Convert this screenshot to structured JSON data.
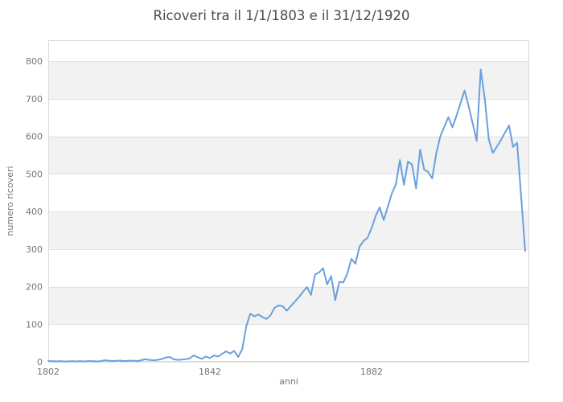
{
  "title": "Ricoveri tra il 1/1/1803 e il 31/12/1920",
  "chart_data": {
    "type": "line",
    "title": "Ricoveri tra il 1/1/1803 e il 31/12/1920",
    "xlabel": "anni",
    "ylabel": "numero ricoveri",
    "x_ticks": [
      1802,
      1842,
      1882
    ],
    "y_ticks": [
      0,
      100,
      200,
      300,
      400,
      500,
      600,
      700,
      800
    ],
    "xlim": [
      1802,
      1921
    ],
    "ylim": [
      0,
      856
    ],
    "grid": "horizontal",
    "legend_position": "none",
    "alternating_bands": [
      [
        100,
        200
      ],
      [
        300,
        400
      ],
      [
        500,
        600
      ],
      [
        700,
        800
      ]
    ],
    "colors": {
      "line": "#69a0dd",
      "band": "#f2f2f2",
      "grid": "#e2e2e2",
      "border": "#d9d9d9",
      "tick_label": "#757575",
      "title": "#4a4a4a"
    },
    "x": [
      1802,
      1803,
      1804,
      1805,
      1806,
      1807,
      1808,
      1809,
      1810,
      1811,
      1812,
      1813,
      1814,
      1815,
      1816,
      1817,
      1818,
      1819,
      1820,
      1821,
      1822,
      1823,
      1824,
      1825,
      1826,
      1827,
      1828,
      1829,
      1830,
      1831,
      1832,
      1833,
      1834,
      1835,
      1836,
      1837,
      1838,
      1839,
      1840,
      1841,
      1842,
      1843,
      1844,
      1845,
      1846,
      1847,
      1848,
      1849,
      1850,
      1851,
      1852,
      1853,
      1854,
      1855,
      1856,
      1857,
      1858,
      1859,
      1860,
      1861,
      1862,
      1863,
      1864,
      1865,
      1866,
      1867,
      1868,
      1869,
      1870,
      1871,
      1872,
      1873,
      1874,
      1875,
      1876,
      1877,
      1878,
      1879,
      1880,
      1881,
      1882,
      1883,
      1884,
      1885,
      1886,
      1887,
      1888,
      1889,
      1890,
      1891,
      1892,
      1893,
      1894,
      1895,
      1896,
      1897,
      1898,
      1899,
      1900,
      1901,
      1902,
      1903,
      1904,
      1905,
      1906,
      1907,
      1908,
      1909,
      1910,
      1911,
      1912,
      1913,
      1914,
      1915,
      1916,
      1917,
      1918,
      1919,
      1920
    ],
    "values": [
      2,
      2,
      1,
      2,
      1,
      1,
      2,
      1,
      2,
      1,
      2,
      2,
      1,
      2,
      4,
      3,
      2,
      3,
      3,
      2,
      3,
      3,
      2,
      4,
      7,
      5,
      4,
      5,
      7,
      11,
      13,
      7,
      5,
      6,
      7,
      9,
      17,
      12,
      8,
      14,
      10,
      17,
      14,
      21,
      28,
      22,
      29,
      13,
      34,
      95,
      128,
      121,
      126,
      119,
      114,
      124,
      144,
      150,
      148,
      136,
      148,
      160,
      172,
      186,
      199,
      178,
      232,
      238,
      249,
      206,
      228,
      164,
      213,
      211,
      235,
      274,
      261,
      306,
      322,
      330,
      356,
      388,
      411,
      377,
      412,
      448,
      472,
      537,
      471,
      533,
      525,
      462,
      565,
      512,
      505,
      488,
      555,
      600,
      626,
      651,
      624,
      655,
      688,
      722,
      681,
      635,
      588,
      778,
      700,
      592,
      556,
      573,
      590,
      610,
      629,
      572,
      583,
      440,
      295
    ]
  }
}
